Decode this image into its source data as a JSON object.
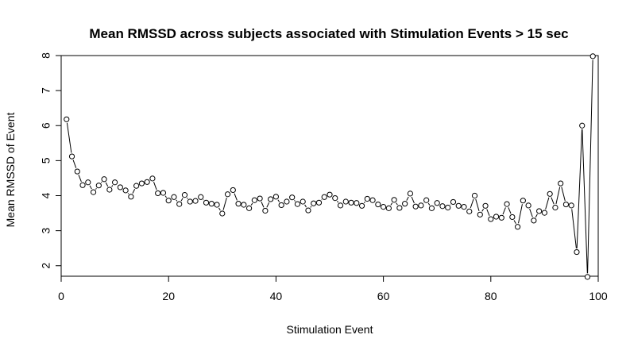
{
  "chart_data": {
    "type": "line",
    "title": "Mean RMSSD across subjects associated with Stimulation Events > 15 sec",
    "xlabel": "Stimulation Event",
    "ylabel": "Mean RMSSD of Event",
    "xlim": [
      0,
      100
    ],
    "ylim": [
      1.7,
      8.0
    ],
    "xticks": [
      0,
      20,
      40,
      60,
      80,
      100
    ],
    "yticks": [
      2,
      3,
      4,
      5,
      6,
      7,
      8
    ],
    "grid": false,
    "line_style": "points-with-connecting-segments",
    "series": [
      {
        "x": [
          1,
          2,
          3,
          4,
          5,
          6,
          7,
          8,
          9,
          10,
          11,
          12,
          13,
          14,
          15,
          16,
          17,
          18,
          19,
          20,
          21,
          22,
          23,
          24,
          25,
          26,
          27,
          28,
          29,
          30,
          31,
          32,
          33,
          34,
          35,
          36,
          37,
          38,
          39,
          40,
          41,
          42,
          43,
          44,
          45,
          46,
          47,
          48,
          49,
          50,
          51,
          52,
          53,
          54,
          55,
          56,
          57,
          58,
          59,
          60,
          61,
          62,
          63,
          64,
          65,
          66,
          67,
          68,
          69,
          70,
          71,
          72,
          73,
          74,
          75,
          76,
          77,
          78,
          79,
          80,
          81,
          82,
          83,
          84,
          85,
          86,
          87,
          88,
          89,
          90,
          91,
          92,
          93,
          94,
          95,
          96,
          97,
          98,
          99
        ],
        "y": [
          6.18,
          5.12,
          4.69,
          4.3,
          4.38,
          4.1,
          4.29,
          4.47,
          4.17,
          4.38,
          4.24,
          4.15,
          3.97,
          4.28,
          4.35,
          4.39,
          4.49,
          4.07,
          4.08,
          3.86,
          3.96,
          3.76,
          4.02,
          3.83,
          3.85,
          3.96,
          3.8,
          3.77,
          3.74,
          3.49,
          4.04,
          4.16,
          3.77,
          3.74,
          3.64,
          3.87,
          3.92,
          3.57,
          3.9,
          3.97,
          3.73,
          3.83,
          3.95,
          3.76,
          3.83,
          3.58,
          3.78,
          3.8,
          3.96,
          4.03,
          3.93,
          3.72,
          3.83,
          3.8,
          3.79,
          3.71,
          3.91,
          3.87,
          3.75,
          3.68,
          3.64,
          3.88,
          3.65,
          3.77,
          4.06,
          3.69,
          3.72,
          3.87,
          3.64,
          3.79,
          3.7,
          3.66,
          3.82,
          3.71,
          3.68,
          3.55,
          4.0,
          3.46,
          3.71,
          3.33,
          3.4,
          3.37,
          3.76,
          3.39,
          3.11,
          3.86,
          3.72,
          3.29,
          3.56,
          3.51,
          4.05,
          3.66,
          4.35,
          3.75,
          3.72,
          2.39,
          6.0,
          1.68,
          7.98
        ]
      }
    ]
  }
}
